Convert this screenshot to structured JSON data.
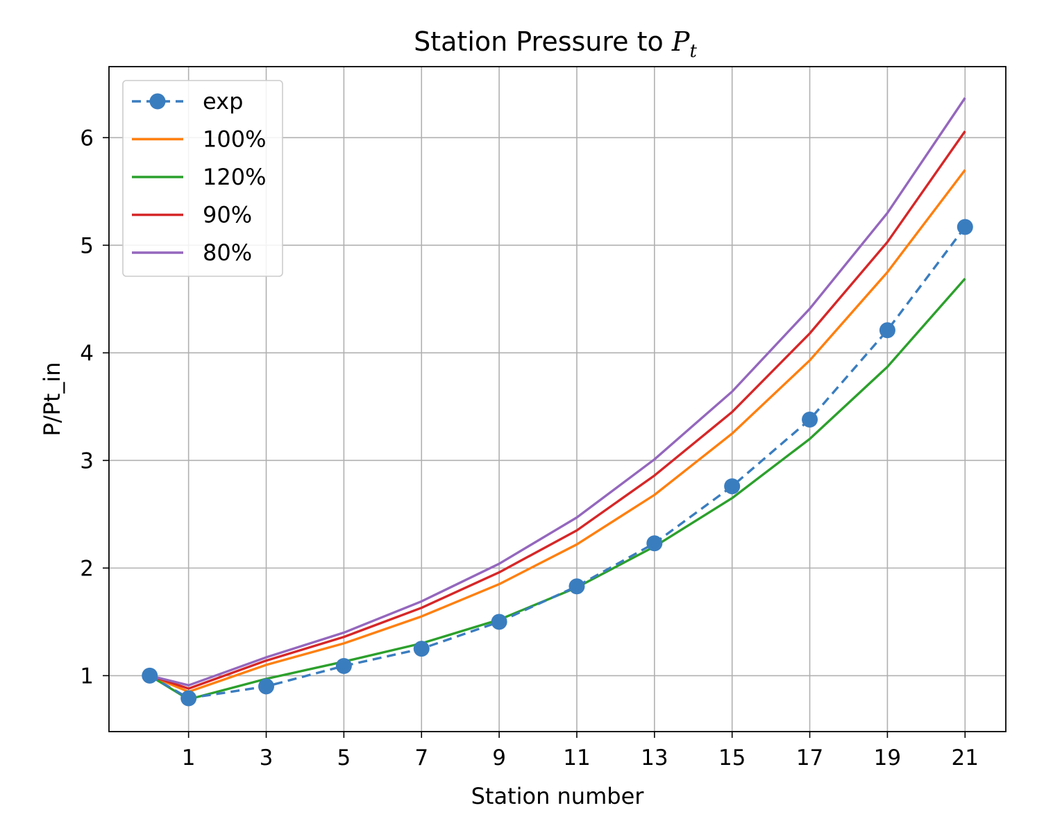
{
  "chart_data": {
    "type": "line",
    "title": "Station Pressure to ",
    "title_math": "P",
    "title_math_sub": "t",
    "xlabel": "Station number",
    "ylabel": "P/Pt_in",
    "x": [
      0,
      1,
      3,
      5,
      7,
      9,
      11,
      13,
      15,
      17,
      19,
      21
    ],
    "xticks": [
      1,
      3,
      5,
      7,
      9,
      11,
      13,
      15,
      17,
      19,
      21
    ],
    "xtick_labels": [
      "1",
      "3",
      "5",
      "7",
      "9",
      "11",
      "13",
      "15",
      "17",
      "19",
      "21"
    ],
    "yticks": [
      1,
      2,
      3,
      4,
      5,
      6
    ],
    "ytick_labels": [
      "1",
      "2",
      "3",
      "4",
      "5",
      "6"
    ],
    "xlim": [
      -1.05,
      22.05
    ],
    "ylim": [
      0.48,
      6.66
    ],
    "grid": true,
    "legend_position": "upper-left",
    "series": [
      {
        "name": "exp",
        "color": "#3a7dbf",
        "style": "dashed",
        "marker": "circle",
        "values": [
          1.0,
          0.79,
          0.9,
          1.09,
          1.25,
          1.5,
          1.83,
          2.23,
          2.76,
          3.38,
          4.21,
          5.17
        ]
      },
      {
        "name": "100%",
        "color": "#ff7f0e",
        "style": "solid",
        "marker": "none",
        "values": [
          1.0,
          0.85,
          1.1,
          1.3,
          1.55,
          1.85,
          2.22,
          2.68,
          3.25,
          3.93,
          4.75,
          5.7
        ]
      },
      {
        "name": "120%",
        "color": "#2ca02c",
        "style": "solid",
        "marker": "none",
        "values": [
          1.0,
          0.78,
          0.97,
          1.13,
          1.3,
          1.52,
          1.82,
          2.2,
          2.65,
          3.2,
          3.87,
          4.69
        ]
      },
      {
        "name": "90%",
        "color": "#d62728",
        "style": "solid",
        "marker": "none",
        "values": [
          1.0,
          0.88,
          1.14,
          1.36,
          1.63,
          1.96,
          2.35,
          2.86,
          3.45,
          4.18,
          5.03,
          6.06
        ]
      },
      {
        "name": "80%",
        "color": "#9467bd",
        "style": "solid",
        "marker": "none",
        "values": [
          1.0,
          0.91,
          1.17,
          1.4,
          1.69,
          2.04,
          2.47,
          3.01,
          3.64,
          4.41,
          5.3,
          6.37
        ]
      }
    ]
  }
}
